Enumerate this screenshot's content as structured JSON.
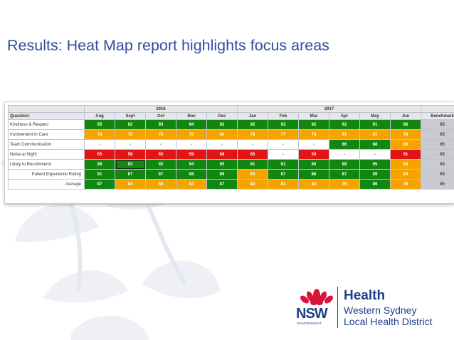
{
  "slide": {
    "title": "Results: Heat Map report highlights focus areas"
  },
  "heatmap": {
    "question_header": "Question:",
    "year_labels": [
      "2016",
      "2017"
    ],
    "months": [
      "Aug",
      "Sept",
      "Oct",
      "Nov",
      "Dec",
      "Jan",
      "Feb",
      "Mar",
      "Apr",
      "May",
      "Jun"
    ],
    "benchmark_header": "Benchmark",
    "rows": [
      {
        "label": "Kindness & Respect",
        "values": [
          "95",
          "92",
          "93",
          "94",
          "92",
          "92",
          "93",
          "92",
          "92",
          "91",
          "86"
        ],
        "colors": [
          "g",
          "g",
          "g",
          "g",
          "g",
          "g",
          "g",
          "g",
          "g",
          "g",
          "g"
        ],
        "benchmark": "85"
      },
      {
        "label": "Involvement in Care",
        "values": [
          "78",
          "75",
          "76",
          "75",
          "80",
          "78",
          "77",
          "76",
          "81",
          "81",
          "78"
        ],
        "colors": [
          "o",
          "o",
          "o",
          "o",
          "o",
          "o",
          "o",
          "o",
          "o",
          "o",
          "o"
        ],
        "benchmark": "85"
      },
      {
        "label": "Team Communication",
        "values": [
          "-",
          "-",
          "-",
          "-",
          "-",
          "-",
          "-",
          "-",
          "86",
          "88",
          "80"
        ],
        "colors": [
          "w",
          "w",
          "w",
          "w",
          "w",
          "w",
          "w",
          "w",
          "g",
          "g",
          "o"
        ],
        "benchmark": "85"
      },
      {
        "label": "Noise at Night",
        "values": [
          "65",
          "58",
          "65",
          "59",
          "68",
          "65",
          "-",
          "50",
          "-",
          "-",
          "61"
        ],
        "colors": [
          "r",
          "r",
          "r",
          "r",
          "r",
          "r",
          "w",
          "r",
          "w",
          "w",
          "r"
        ],
        "benchmark": "85"
      },
      {
        "label": "Likely to Recommend",
        "values": [
          "98",
          "93",
          "92",
          "94",
          "95",
          "91",
          "91",
          "90",
          "88",
          "95",
          "84"
        ],
        "colors": [
          "g",
          "g",
          "g",
          "g",
          "g",
          "g",
          "g",
          "g",
          "g",
          "g",
          "o"
        ],
        "benchmark": "85"
      },
      {
        "label": "Patient Experience Rating",
        "values": [
          "91",
          "87",
          "87",
          "88",
          "89",
          "84",
          "87",
          "86",
          "87",
          "89",
          "83"
        ],
        "colors": [
          "g",
          "g",
          "g",
          "g",
          "g",
          "o",
          "g",
          "g",
          "g",
          "g",
          "o"
        ],
        "benchmark": "85"
      },
      {
        "label": "Average",
        "values": [
          "87",
          "84",
          "84",
          "84",
          "87",
          "82",
          "81",
          "82",
          "79",
          "86",
          "78"
        ],
        "colors": [
          "g",
          "o",
          "o",
          "o",
          "g",
          "o",
          "o",
          "o",
          "o",
          "g",
          "o"
        ],
        "benchmark": "85"
      }
    ],
    "colors": {
      "green": "#118611",
      "orange": "#f6a300",
      "red": "#e31414",
      "benchmark": "#c9cbd0"
    }
  },
  "logo": {
    "nsw": "NSW",
    "government": "GOVERNMENT",
    "health": "Health",
    "district_line1": "Western Sydney",
    "district_line2": "Local Health District"
  }
}
